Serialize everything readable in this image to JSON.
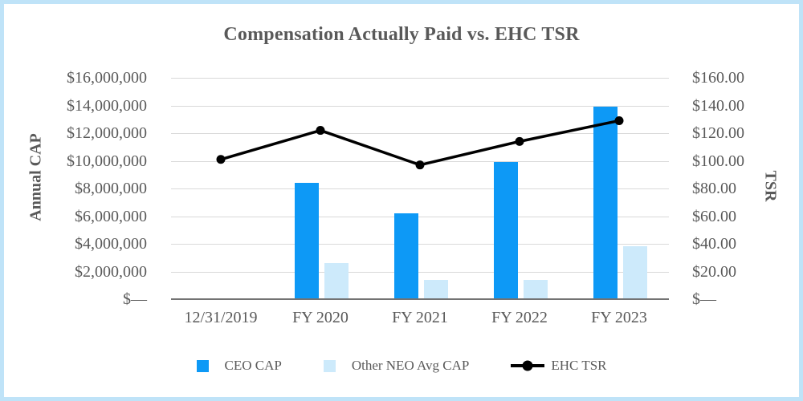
{
  "title": "Compensation Actually Paid vs. EHC TSR",
  "axes": {
    "left": {
      "title": "Annual CAP",
      "tick_labels": [
        "$16,000,000",
        "$14,000,000",
        "$12,000,000",
        "$10,000,000",
        "$8,000,000",
        "$6,000,000",
        "$4,000,000",
        "$2,000,000",
        "$—"
      ]
    },
    "right": {
      "title": "TSR",
      "tick_labels": [
        "$160.00",
        "$140.00",
        "$120.00",
        "$100.00",
        "$80.00",
        "$60.00",
        "$40.00",
        "$20.00",
        "$—"
      ]
    },
    "x": {
      "tick_labels": [
        "12/31/2019",
        "FY 2020",
        "FY 2021",
        "FY 2022",
        "FY 2023"
      ]
    }
  },
  "legend": {
    "items": [
      {
        "label": "CEO CAP",
        "marker": "square",
        "color": "#0d99f6"
      },
      {
        "label": "Other NEO Avg CAP",
        "marker": "square",
        "color": "#cdeafb"
      },
      {
        "label": "EHC TSR",
        "marker": "line-dot",
        "color": "#000000"
      }
    ]
  },
  "colors": {
    "ceo_bar": "#0d99f6",
    "neo_bar": "#cdeafb",
    "tsr_line": "#000000",
    "frame_border": "#bfe3f8",
    "text": "#595959",
    "gridline": "#d9d9d9",
    "axis_line": "#737373"
  },
  "chart_data": {
    "type": "combo",
    "subtypes": [
      "bar",
      "line"
    ],
    "title": "Compensation Actually Paid vs. EHC TSR",
    "categories": [
      "12/31/2019",
      "FY 2020",
      "FY 2021",
      "FY 2022",
      "FY 2023"
    ],
    "series": [
      {
        "name": "CEO CAP",
        "type": "bar",
        "axis": "left",
        "color": "#0d99f6",
        "values": [
          null,
          8400000,
          6200000,
          9900000,
          13900000
        ]
      },
      {
        "name": "Other NEO Avg CAP",
        "type": "bar",
        "axis": "left",
        "color": "#cdeafb",
        "values": [
          null,
          2600000,
          1400000,
          1400000,
          3800000
        ]
      },
      {
        "name": "EHC TSR",
        "type": "line",
        "axis": "right",
        "color": "#000000",
        "marker": "circle",
        "values": [
          101,
          122,
          97,
          114,
          129
        ]
      }
    ],
    "left_axis": {
      "label": "Annual CAP",
      "range": [
        0,
        16000000
      ],
      "tick_step": 2000000,
      "format": "$#,##0"
    },
    "right_axis": {
      "label": "TSR",
      "range": [
        0,
        160
      ],
      "tick_step": 20,
      "format": "$0.00"
    },
    "grid": true,
    "legend_position": "bottom"
  }
}
